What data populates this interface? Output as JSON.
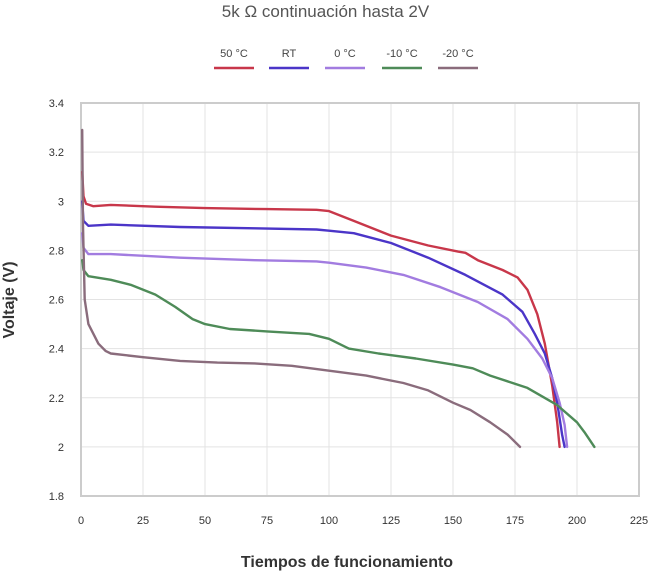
{
  "chart_data": {
    "type": "line",
    "title": "5k Ω continuación hasta 2V",
    "xlabel": "Tiempos de funcionamiento",
    "ylabel": "Voltaje (V)",
    "xlim": [
      0,
      225
    ],
    "ylim": [
      1.8,
      3.4
    ],
    "x_ticks": [
      0,
      25,
      50,
      75,
      100,
      125,
      150,
      175,
      200,
      225
    ],
    "y_ticks": [
      "1.8",
      "2",
      "2.2",
      "2.4",
      "2.6",
      "2.8",
      "3",
      "3.2",
      "3.4"
    ],
    "grid": true,
    "legend_position": "top-center",
    "series": [
      {
        "name": "50 °C",
        "color": "#c8374a",
        "points": [
          [
            0.5,
            3.12
          ],
          [
            1,
            3.02
          ],
          [
            2,
            2.99
          ],
          [
            5,
            2.98
          ],
          [
            12,
            2.985
          ],
          [
            30,
            2.978
          ],
          [
            50,
            2.972
          ],
          [
            75,
            2.968
          ],
          [
            95,
            2.965
          ],
          [
            100,
            2.96
          ],
          [
            110,
            2.92
          ],
          [
            125,
            2.86
          ],
          [
            140,
            2.82
          ],
          [
            152,
            2.795
          ],
          [
            155,
            2.79
          ],
          [
            160,
            2.76
          ],
          [
            170,
            2.72
          ],
          [
            176,
            2.69
          ],
          [
            180,
            2.64
          ],
          [
            184,
            2.54
          ],
          [
            187,
            2.42
          ],
          [
            190,
            2.25
          ],
          [
            192,
            2.1
          ],
          [
            193,
            2.0
          ]
        ]
      },
      {
        "name": "RT",
        "color": "#4b35c8",
        "points": [
          [
            0.5,
            3.0
          ],
          [
            1,
            2.92
          ],
          [
            3,
            2.9
          ],
          [
            12,
            2.905
          ],
          [
            40,
            2.895
          ],
          [
            70,
            2.89
          ],
          [
            95,
            2.885
          ],
          [
            100,
            2.88
          ],
          [
            110,
            2.87
          ],
          [
            125,
            2.83
          ],
          [
            140,
            2.77
          ],
          [
            155,
            2.7
          ],
          [
            170,
            2.62
          ],
          [
            178,
            2.55
          ],
          [
            183,
            2.46
          ],
          [
            187,
            2.38
          ],
          [
            190,
            2.28
          ],
          [
            192,
            2.18
          ],
          [
            194,
            2.05
          ],
          [
            195,
            2.0
          ]
        ]
      },
      {
        "name": "0 °C",
        "color": "#a27ce0",
        "points": [
          [
            0.5,
            2.87
          ],
          [
            1,
            2.81
          ],
          [
            3,
            2.785
          ],
          [
            12,
            2.785
          ],
          [
            40,
            2.77
          ],
          [
            70,
            2.76
          ],
          [
            95,
            2.755
          ],
          [
            100,
            2.75
          ],
          [
            115,
            2.73
          ],
          [
            130,
            2.7
          ],
          [
            145,
            2.65
          ],
          [
            160,
            2.59
          ],
          [
            172,
            2.52
          ],
          [
            180,
            2.44
          ],
          [
            186,
            2.36
          ],
          [
            190,
            2.28
          ],
          [
            193,
            2.18
          ],
          [
            195,
            2.09
          ],
          [
            196,
            2.0
          ]
        ]
      },
      {
        "name": "-10 °C",
        "color": "#4e8b58",
        "points": [
          [
            0.5,
            2.76
          ],
          [
            1,
            2.72
          ],
          [
            3,
            2.695
          ],
          [
            12,
            2.68
          ],
          [
            20,
            2.66
          ],
          [
            30,
            2.62
          ],
          [
            38,
            2.57
          ],
          [
            45,
            2.52
          ],
          [
            50,
            2.5
          ],
          [
            60,
            2.48
          ],
          [
            75,
            2.47
          ],
          [
            92,
            2.46
          ],
          [
            100,
            2.44
          ],
          [
            108,
            2.4
          ],
          [
            120,
            2.38
          ],
          [
            135,
            2.36
          ],
          [
            150,
            2.335
          ],
          [
            158,
            2.32
          ],
          [
            165,
            2.29
          ],
          [
            180,
            2.24
          ],
          [
            192,
            2.17
          ],
          [
            200,
            2.1
          ],
          [
            203,
            2.06
          ],
          [
            207,
            2.0
          ]
        ]
      },
      {
        "name": "-20 °C",
        "color": "#8a6c7c",
        "points": [
          [
            0.5,
            3.29
          ],
          [
            0.8,
            2.9
          ],
          [
            1.5,
            2.6
          ],
          [
            3,
            2.5
          ],
          [
            7,
            2.42
          ],
          [
            10,
            2.39
          ],
          [
            12,
            2.38
          ],
          [
            25,
            2.365
          ],
          [
            40,
            2.35
          ],
          [
            55,
            2.343
          ],
          [
            70,
            2.34
          ],
          [
            85,
            2.33
          ],
          [
            100,
            2.31
          ],
          [
            115,
            2.29
          ],
          [
            130,
            2.26
          ],
          [
            140,
            2.23
          ],
          [
            150,
            2.18
          ],
          [
            157,
            2.15
          ],
          [
            165,
            2.1
          ],
          [
            172,
            2.05
          ],
          [
            177,
            2.0
          ]
        ]
      }
    ]
  }
}
